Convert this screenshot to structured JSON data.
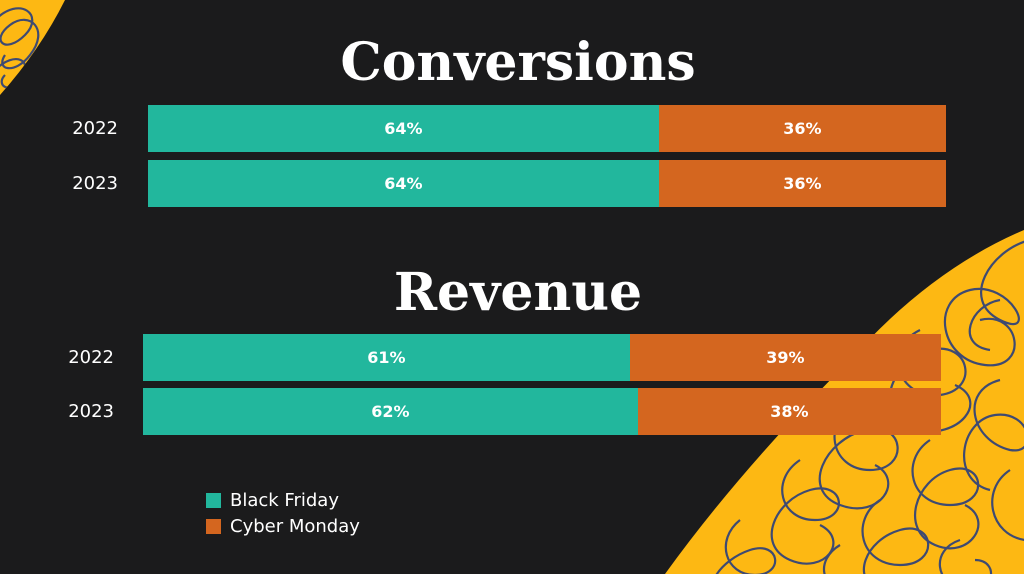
{
  "colors": {
    "black_friday": "#22b79d",
    "cyber_monday": "#d4661f",
    "background": "#1b1b1c",
    "accent": "#fdb813",
    "scribble": "#3e4a72"
  },
  "chart_data": [
    {
      "type": "bar",
      "orientation": "horizontal",
      "stacked": true,
      "title": "Conversions",
      "categories": [
        "2022",
        "2023"
      ],
      "series": [
        {
          "name": "Black Friday",
          "values": [
            64,
            64
          ],
          "labels": [
            "64%",
            "64%"
          ]
        },
        {
          "name": "Cyber Monday",
          "values": [
            36,
            36
          ],
          "labels": [
            "36%",
            "36%"
          ]
        }
      ],
      "xlim": [
        0,
        100
      ],
      "grid": false
    },
    {
      "type": "bar",
      "orientation": "horizontal",
      "stacked": true,
      "title": "Revenue",
      "categories": [
        "2022",
        "2023"
      ],
      "series": [
        {
          "name": "Black Friday",
          "values": [
            61,
            62
          ],
          "labels": [
            "61%",
            "62%"
          ]
        },
        {
          "name": "Cyber Monday",
          "values": [
            39,
            38
          ],
          "labels": [
            "39%",
            "38%"
          ]
        }
      ],
      "xlim": [
        0,
        100
      ],
      "grid": false
    }
  ],
  "legend": {
    "placement": "bottom-left",
    "items": [
      {
        "name": "Black Friday",
        "color": "#22b79d"
      },
      {
        "name": "Cyber Monday",
        "color": "#d4661f"
      }
    ]
  }
}
